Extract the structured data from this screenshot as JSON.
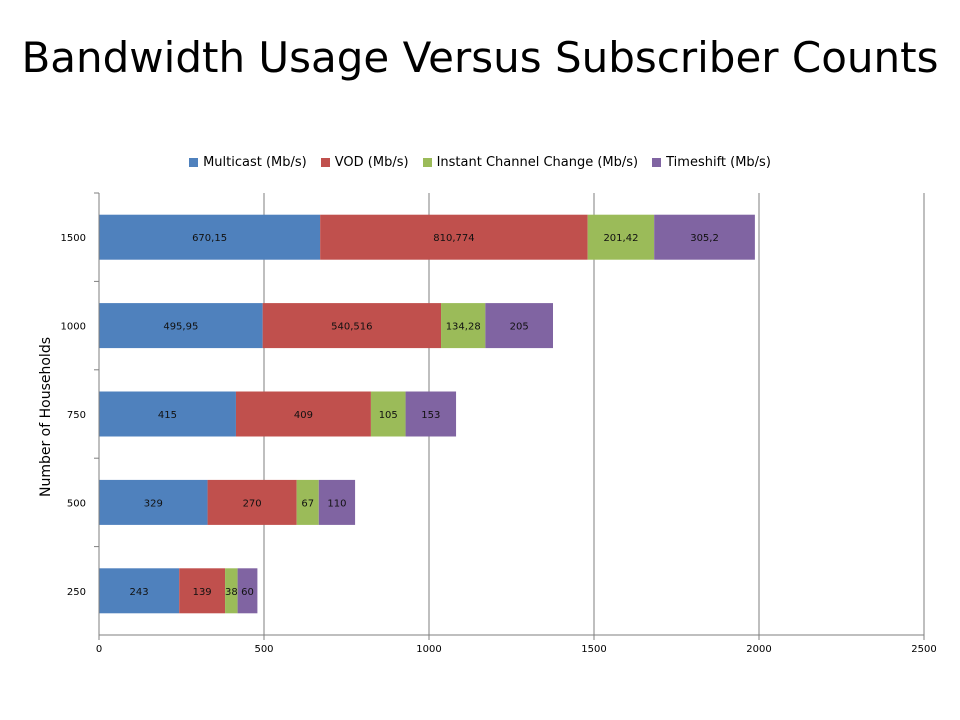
{
  "title": "Bandwidth Usage Versus Subscriber Counts",
  "chart_data": {
    "type": "bar",
    "orientation": "horizontal",
    "stacked": true,
    "title": "Bandwidth Usage Versus Subscriber Counts",
    "xlabel": "",
    "ylabel": "Number of Households",
    "xlim": [
      0,
      2500
    ],
    "xticks": [
      "0",
      "500",
      "1000",
      "1500",
      "2000",
      "2500"
    ],
    "categories": [
      "250",
      "500",
      "750",
      "1000",
      "1500"
    ],
    "grid": "vertical",
    "legend_position": "top",
    "series": [
      {
        "name": "Multicast (Mb/s)",
        "color": "#4F81BD",
        "values": [
          243,
          329,
          415,
          495.95,
          670.15
        ],
        "labels": [
          "243",
          "329",
          "415",
          "495,95",
          "670,15"
        ]
      },
      {
        "name": "VOD (Mb/s)",
        "color": "#C0504D",
        "values": [
          139,
          270,
          409,
          540.516,
          810.774
        ],
        "labels": [
          "139",
          "270",
          "409",
          "540,516",
          "810,774"
        ]
      },
      {
        "name": "Instant Channel Change (Mb/s)",
        "color": "#9BBB59",
        "values": [
          38,
          67,
          105,
          134.28,
          201.42
        ],
        "labels": [
          "38",
          "67",
          "105",
          "134,28",
          "201,42"
        ]
      },
      {
        "name": "Timeshift (Mb/s)",
        "color": "#8064A2",
        "values": [
          60,
          110,
          153,
          205,
          305.2
        ],
        "labels": [
          "60",
          "110",
          "153",
          "205",
          "305,2"
        ]
      }
    ]
  }
}
